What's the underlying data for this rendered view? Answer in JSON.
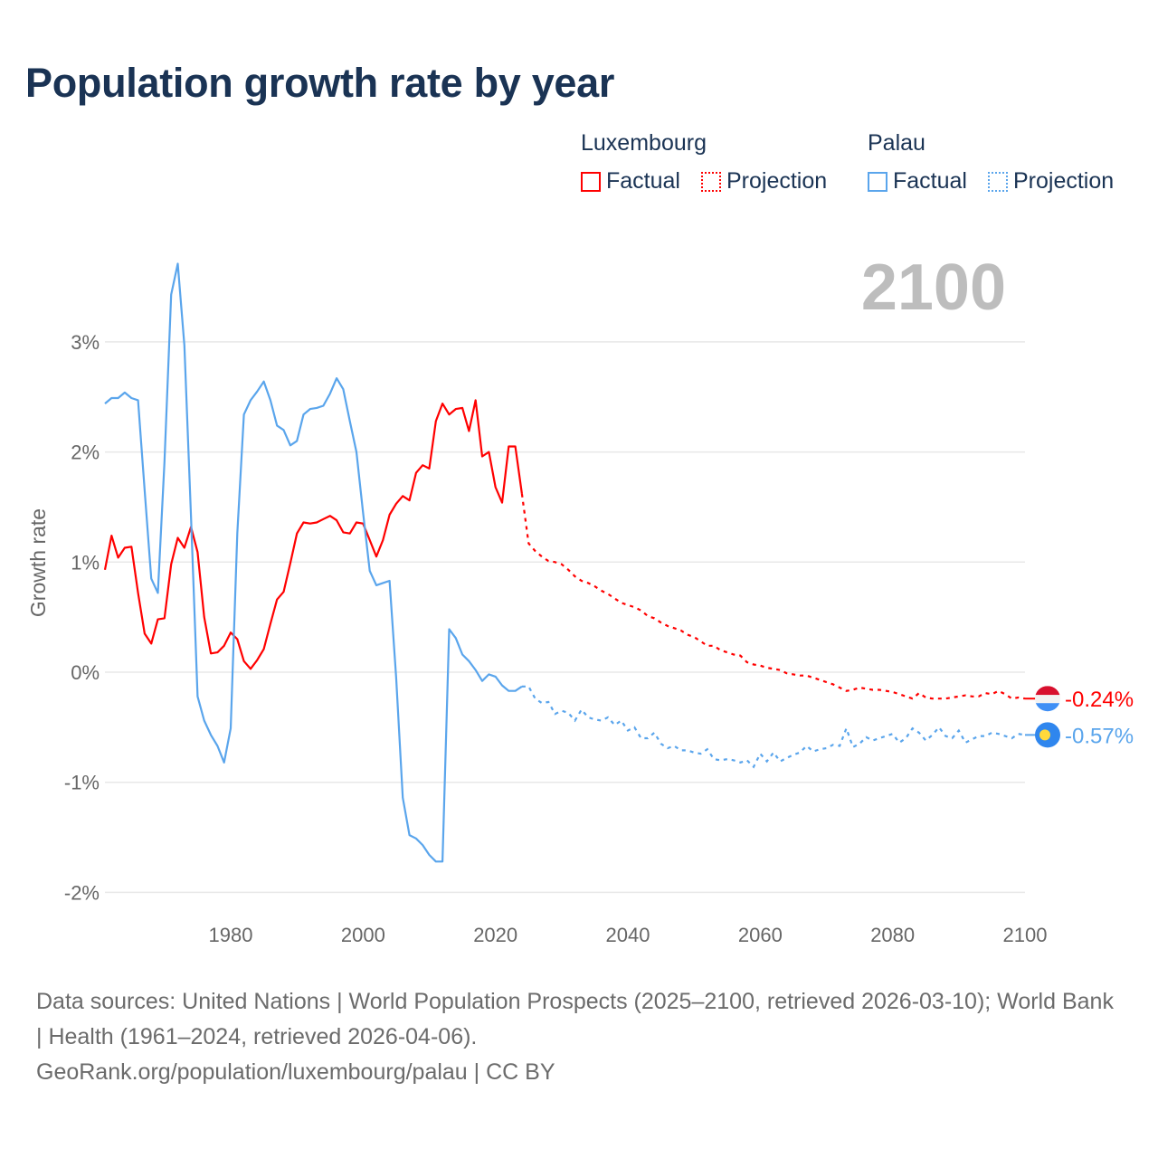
{
  "title": "Population growth rate by year",
  "legend": {
    "groups": [
      {
        "name": "Luxembourg",
        "color": "#ff0000",
        "factual": "Factual",
        "projection": "Projection"
      },
      {
        "name": "Palau",
        "color": "#5aa5ec",
        "factual": "Factual",
        "projection": "Projection"
      }
    ]
  },
  "year_label": "2100",
  "footer": {
    "sources": "Data sources: United Nations | World Population Prospects (2025–2100, retrieved 2026-03-10); World Bank | Health (1961–2024, retrieved 2026-04-06).",
    "credit": "GeoRank.org/population/luxembourg/palau | CC BY"
  },
  "chart_data": {
    "type": "line",
    "title": "Population growth rate by year",
    "xlabel": "",
    "ylabel": "Growth rate",
    "xlim": [
      1961,
      2100
    ],
    "ylim": [
      -2.2,
      3.3
    ],
    "x_ticks": [
      1980,
      2000,
      2020,
      2040,
      2060,
      2080,
      2100
    ],
    "y_ticks": [
      {
        "v": 3,
        "label": "3%"
      },
      {
        "v": 2,
        "label": "2%"
      },
      {
        "v": 1,
        "label": "1%"
      },
      {
        "v": 0,
        "label": "0%"
      },
      {
        "v": -1,
        "label": "-1%"
      },
      {
        "v": -2,
        "label": "-2%"
      }
    ],
    "grid": true,
    "series": [
      {
        "name": "Luxembourg",
        "color": "#ff0000",
        "end_label": "-0.24%",
        "factual_start": 1961,
        "factual": [
          0.93,
          1.24,
          1.04,
          1.13,
          1.14,
          0.72,
          0.35,
          0.26,
          0.48,
          0.49,
          0.98,
          1.22,
          1.13,
          1.32,
          1.09,
          0.5,
          0.17,
          0.18,
          0.24,
          0.36,
          0.3,
          0.1,
          0.03,
          0.11,
          0.21,
          0.44,
          0.66,
          0.73,
          0.99,
          1.26,
          1.36,
          1.35,
          1.36,
          1.39,
          1.42,
          1.38,
          1.27,
          1.26,
          1.36,
          1.35,
          1.2,
          1.05,
          1.2,
          1.43,
          1.53,
          1.6,
          1.56,
          1.81,
          1.88,
          1.85,
          2.28,
          2.44,
          2.34,
          2.39,
          2.4,
          2.19,
          2.47,
          1.96,
          2.0,
          1.68,
          1.54,
          2.05,
          2.05,
          1.62
        ],
        "projection_start": 2024,
        "projection": [
          1.62,
          1.17,
          1.1,
          1.05,
          1.01,
          1.0,
          0.98,
          0.93,
          0.87,
          0.83,
          0.81,
          0.78,
          0.74,
          0.71,
          0.67,
          0.63,
          0.61,
          0.59,
          0.56,
          0.51,
          0.49,
          0.45,
          0.42,
          0.4,
          0.38,
          0.34,
          0.32,
          0.28,
          0.24,
          0.24,
          0.2,
          0.18,
          0.16,
          0.15,
          0.09,
          0.07,
          0.06,
          0.04,
          0.03,
          0.02,
          -0.01,
          -0.02,
          -0.03,
          -0.03,
          -0.05,
          -0.07,
          -0.09,
          -0.11,
          -0.14,
          -0.17,
          -0.16,
          -0.14,
          -0.15,
          -0.16,
          -0.16,
          -0.17,
          -0.18,
          -0.2,
          -0.22,
          -0.24,
          -0.19,
          -0.23,
          -0.24,
          -0.24,
          -0.24,
          -0.23,
          -0.22,
          -0.21,
          -0.22,
          -0.22,
          -0.19,
          -0.2,
          -0.17,
          -0.2,
          -0.24,
          -0.23,
          -0.24
        ]
      },
      {
        "name": "Palau",
        "color": "#5aa5ec",
        "end_label": "-0.57%",
        "factual_start": 1961,
        "factual": [
          2.44,
          2.49,
          2.49,
          2.54,
          2.49,
          2.47,
          1.65,
          0.85,
          0.72,
          1.91,
          3.43,
          3.71,
          2.97,
          1.42,
          -0.22,
          -0.44,
          -0.57,
          -0.67,
          -0.82,
          -0.51,
          1.26,
          2.34,
          2.47,
          2.55,
          2.64,
          2.47,
          2.24,
          2.2,
          2.06,
          2.1,
          2.34,
          2.39,
          2.4,
          2.42,
          2.53,
          2.67,
          2.57,
          2.28,
          2.0,
          1.45,
          0.92,
          0.79,
          0.81,
          0.83,
          -0.05,
          -1.14,
          -1.48,
          -1.51,
          -1.57,
          -1.66,
          -1.72,
          -1.72,
          0.39,
          0.31,
          0.16,
          0.1,
          0.02,
          -0.08,
          -0.02,
          -0.04,
          -0.12,
          -0.17,
          -0.17,
          -0.13
        ],
        "projection_start": 2024,
        "projection": [
          -0.13,
          -0.13,
          -0.24,
          -0.28,
          -0.27,
          -0.38,
          -0.35,
          -0.37,
          -0.44,
          -0.34,
          -0.41,
          -0.43,
          -0.44,
          -0.41,
          -0.48,
          -0.44,
          -0.53,
          -0.5,
          -0.6,
          -0.6,
          -0.55,
          -0.65,
          -0.69,
          -0.67,
          -0.71,
          -0.71,
          -0.73,
          -0.74,
          -0.7,
          -0.79,
          -0.8,
          -0.79,
          -0.8,
          -0.82,
          -0.8,
          -0.86,
          -0.74,
          -0.81,
          -0.73,
          -0.81,
          -0.78,
          -0.75,
          -0.73,
          -0.67,
          -0.72,
          -0.7,
          -0.69,
          -0.66,
          -0.67,
          -0.51,
          -0.68,
          -0.65,
          -0.59,
          -0.62,
          -0.6,
          -0.58,
          -0.56,
          -0.64,
          -0.6,
          -0.51,
          -0.55,
          -0.62,
          -0.57,
          -0.5,
          -0.58,
          -0.6,
          -0.53,
          -0.64,
          -0.61,
          -0.58,
          -0.58,
          -0.55,
          -0.56,
          -0.58,
          -0.6,
          -0.56,
          -0.57
        ]
      }
    ]
  }
}
